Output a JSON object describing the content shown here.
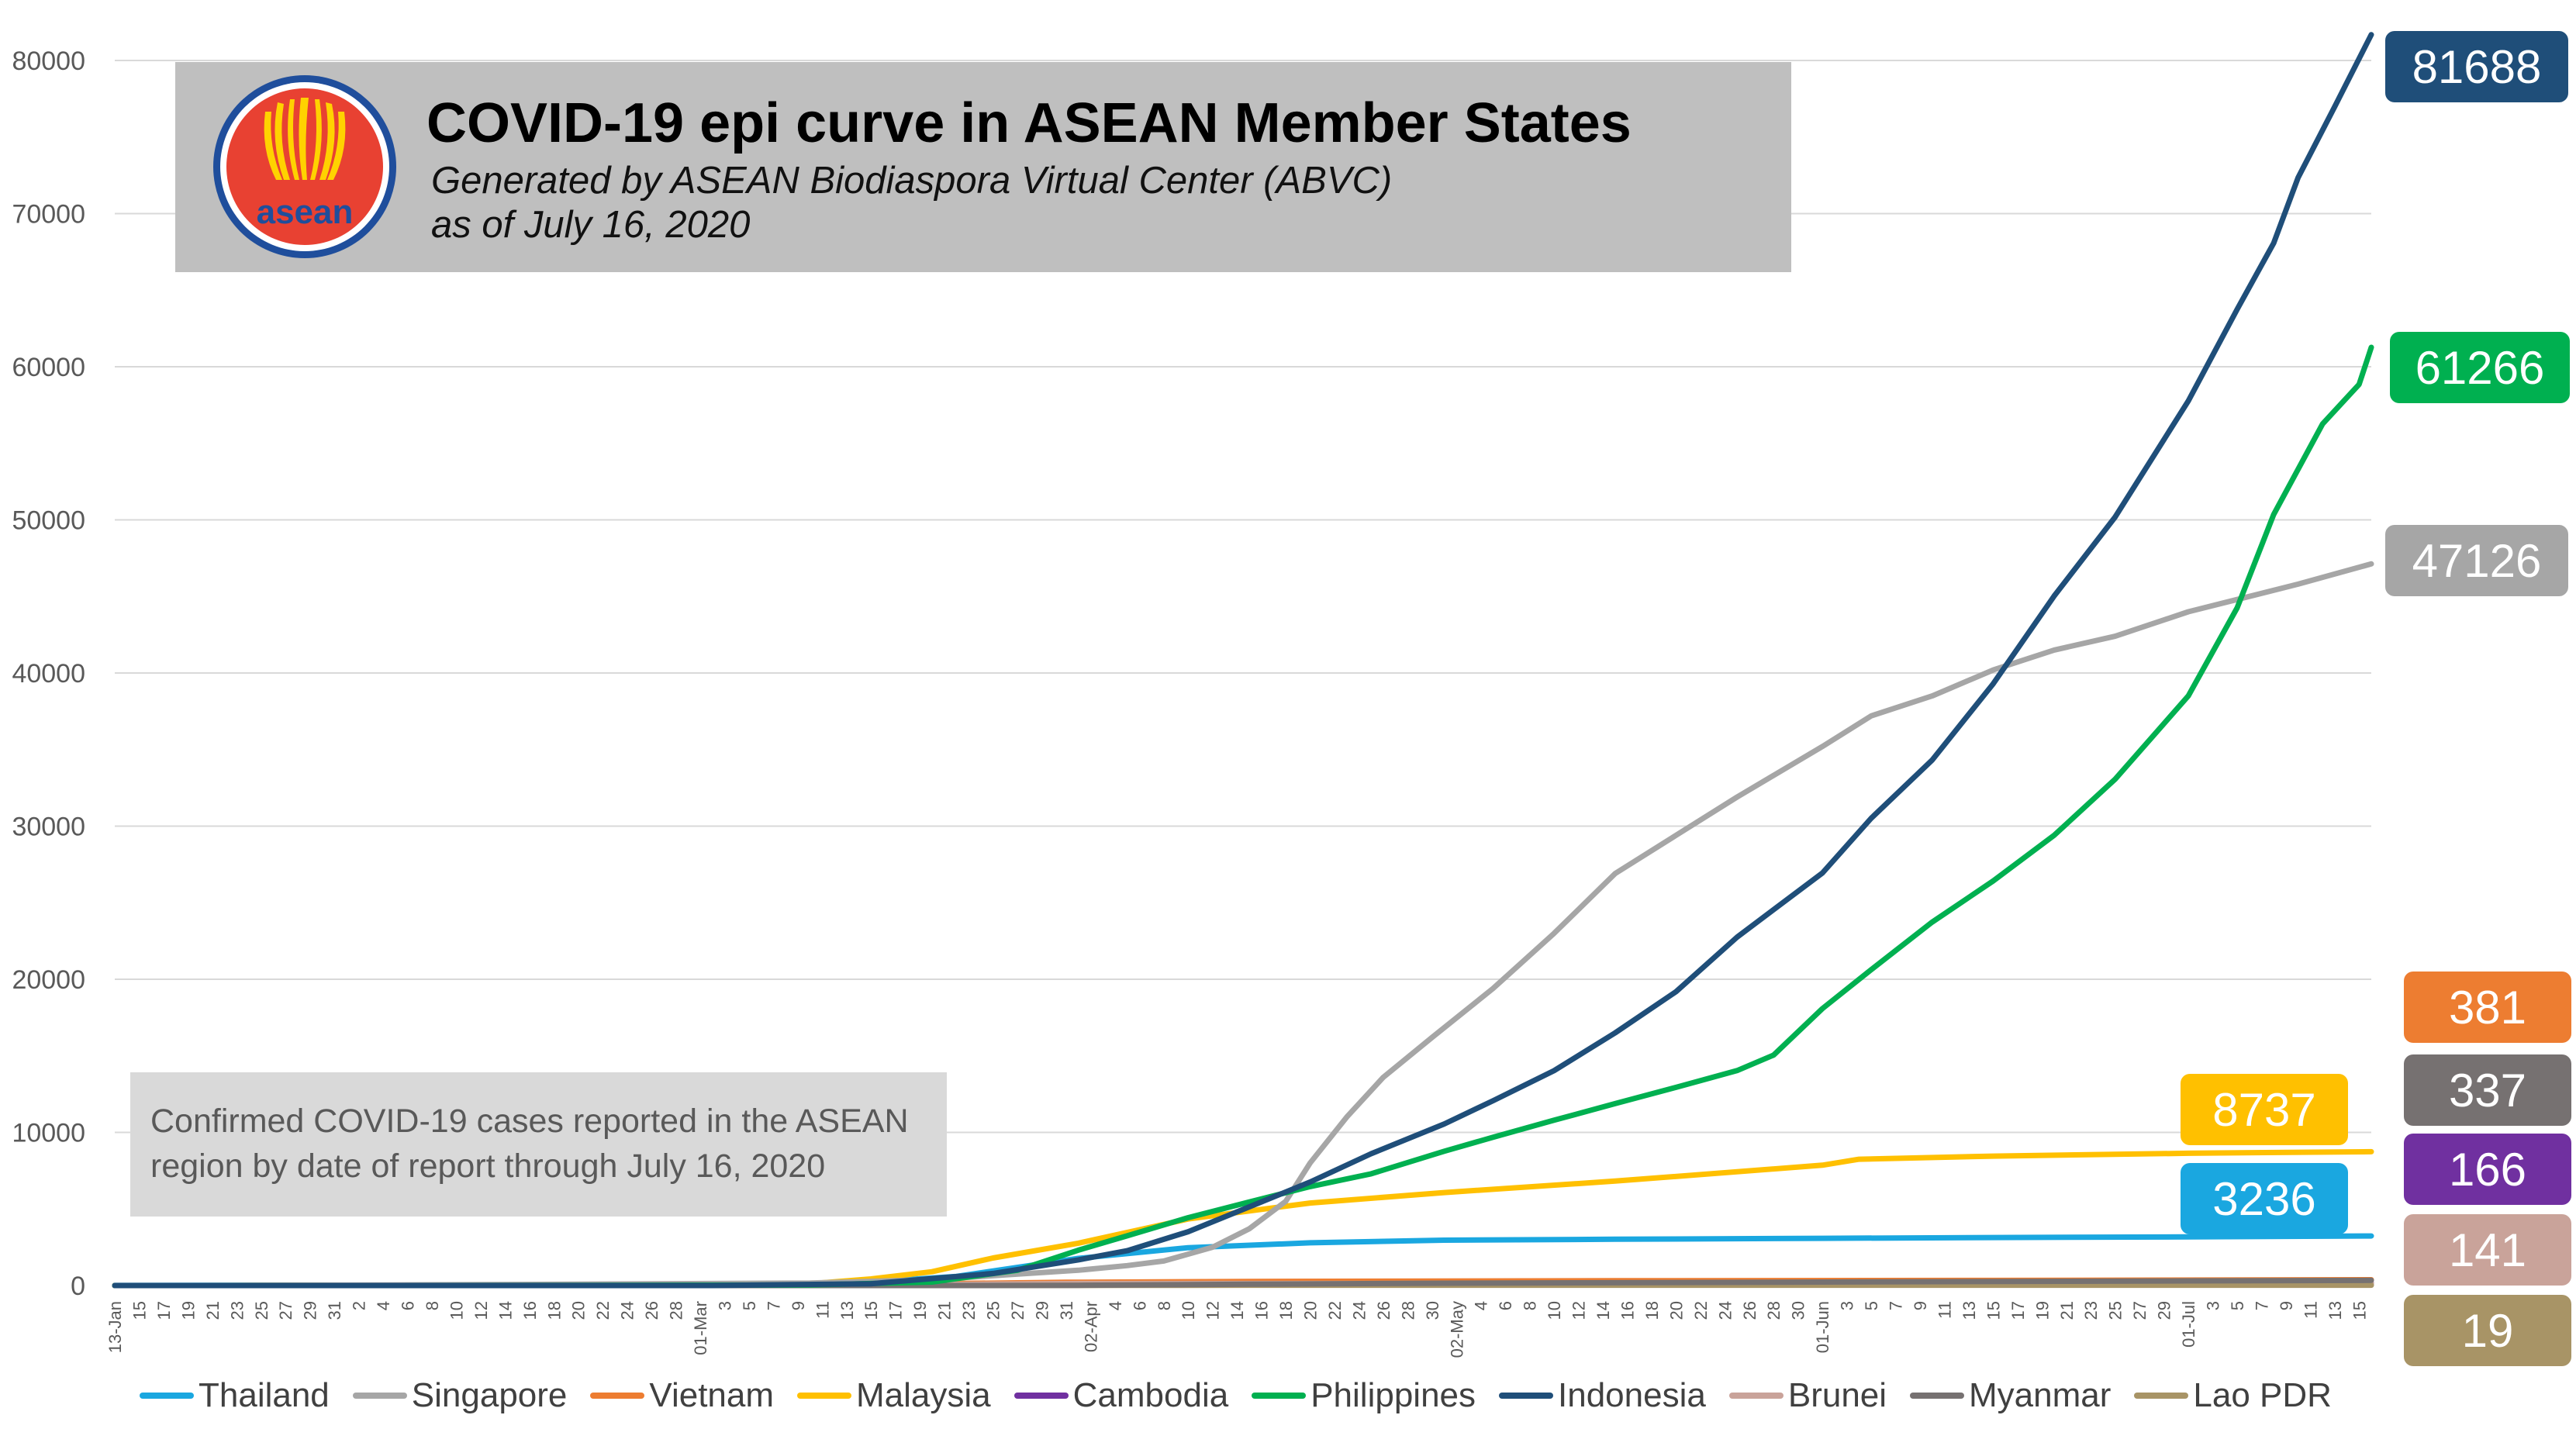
{
  "chart_data": {
    "type": "line",
    "title": "COVID-19 epi curve in ASEAN Member States",
    "subtitle": "Generated by ASEAN Biodiaspora Virtual Center (ABVC)",
    "subtitle2": "as of July 16, 2020",
    "note_lines": [
      "Confirmed COVID-19 cases reported in the ASEAN",
      "region by date of report  through July 16, 2020"
    ],
    "logo_text": "asean",
    "xlabel": "",
    "ylabel": "",
    "ylim": [
      0,
      80000
    ],
    "yticks": [
      "0",
      "10000",
      "20000",
      "30000",
      "40000",
      "50000",
      "60000",
      "70000",
      "80000"
    ],
    "x_tick_labels": [
      "13-Jan",
      "15",
      "17",
      "19",
      "21",
      "23",
      "25",
      "27",
      "29",
      "31",
      "2",
      "4",
      "6",
      "8",
      "10",
      "12",
      "14",
      "16",
      "18",
      "20",
      "22",
      "24",
      "26",
      "28",
      "01-Mar",
      "3",
      "5",
      "7",
      "9",
      "11",
      "13",
      "15",
      "17",
      "19",
      "21",
      "23",
      "25",
      "27",
      "29",
      "31",
      "02-Apr",
      "4",
      "6",
      "8",
      "10",
      "12",
      "14",
      "16",
      "18",
      "20",
      "22",
      "24",
      "26",
      "28",
      "30",
      "02-May",
      "4",
      "6",
      "8",
      "10",
      "12",
      "14",
      "16",
      "18",
      "20",
      "22",
      "24",
      "26",
      "28",
      "30",
      "01-Jun",
      "3",
      "5",
      "7",
      "9",
      "11",
      "13",
      "15",
      "17",
      "19",
      "21",
      "23",
      "25",
      "27",
      "29",
      "01-Jul",
      "3",
      "5",
      "7",
      "9",
      "11",
      "13",
      "15"
    ],
    "x_start": "2020-01-13",
    "x_end": "2020-07-16",
    "grid": true,
    "legend_position": "bottom",
    "series": [
      {
        "name": "Thailand",
        "color": "#1aa7e0",
        "final": 3236,
        "points": [
          [
            "2020-01-13",
            4
          ],
          [
            "2020-02-15",
            34
          ],
          [
            "2020-03-12",
            70
          ],
          [
            "2020-03-22",
            599
          ],
          [
            "2020-04-01",
            1771
          ],
          [
            "2020-04-10",
            2473
          ],
          [
            "2020-04-20",
            2792
          ],
          [
            "2020-05-01",
            2960
          ],
          [
            "2020-05-15",
            3025
          ],
          [
            "2020-06-01",
            3082
          ],
          [
            "2020-06-15",
            3135
          ],
          [
            "2020-07-01",
            3173
          ],
          [
            "2020-07-16",
            3236
          ]
        ]
      },
      {
        "name": "Singapore",
        "color": "#a6a6a6",
        "final": 47126,
        "points": [
          [
            "2020-01-23",
            1
          ],
          [
            "2020-02-15",
            72
          ],
          [
            "2020-03-10",
            166
          ],
          [
            "2020-03-20",
            385
          ],
          [
            "2020-04-01",
            1000
          ],
          [
            "2020-04-05",
            1300
          ],
          [
            "2020-04-08",
            1600
          ],
          [
            "2020-04-12",
            2500
          ],
          [
            "2020-04-15",
            3700
          ],
          [
            "2020-04-18",
            5500
          ],
          [
            "2020-04-20",
            8000
          ],
          [
            "2020-04-23",
            11000
          ],
          [
            "2020-04-26",
            13600
          ],
          [
            "2020-04-30",
            16200
          ],
          [
            "2020-05-05",
            19400
          ],
          [
            "2020-05-10",
            23000
          ],
          [
            "2020-05-15",
            26900
          ],
          [
            "2020-05-20",
            29400
          ],
          [
            "2020-05-25",
            31900
          ],
          [
            "2020-06-01",
            35200
          ],
          [
            "2020-06-05",
            37200
          ],
          [
            "2020-06-10",
            38500
          ],
          [
            "2020-06-15",
            40200
          ],
          [
            "2020-06-20",
            41500
          ],
          [
            "2020-06-25",
            42400
          ],
          [
            "2020-07-01",
            44000
          ],
          [
            "2020-07-05",
            44800
          ],
          [
            "2020-07-10",
            45800
          ],
          [
            "2020-07-16",
            47126
          ]
        ]
      },
      {
        "name": "Vietnam",
        "color": "#ed7d31",
        "final": 381,
        "points": [
          [
            "2020-01-23",
            2
          ],
          [
            "2020-02-15",
            16
          ],
          [
            "2020-03-10",
            31
          ],
          [
            "2020-03-31",
            212
          ],
          [
            "2020-04-15",
            268
          ],
          [
            "2020-05-15",
            314
          ],
          [
            "2020-06-15",
            334
          ],
          [
            "2020-07-16",
            381
          ]
        ]
      },
      {
        "name": "Malaysia",
        "color": "#ffc000",
        "final": 8737,
        "points": [
          [
            "2020-01-25",
            3
          ],
          [
            "2020-02-15",
            22
          ],
          [
            "2020-03-10",
            117
          ],
          [
            "2020-03-15",
            428
          ],
          [
            "2020-03-20",
            900
          ],
          [
            "2020-03-25",
            1800
          ],
          [
            "2020-04-01",
            2766
          ],
          [
            "2020-04-10",
            4346
          ],
          [
            "2020-04-20",
            5389
          ],
          [
            "2020-05-01",
            6071
          ],
          [
            "2020-05-15",
            6819
          ],
          [
            "2020-06-01",
            7857
          ],
          [
            "2020-06-04",
            8247
          ],
          [
            "2020-06-15",
            8453
          ],
          [
            "2020-07-01",
            8640
          ],
          [
            "2020-07-16",
            8737
          ]
        ]
      },
      {
        "name": "Cambodia",
        "color": "#7030a0",
        "final": 166,
        "points": [
          [
            "2020-01-27",
            1
          ],
          [
            "2020-02-15",
            1
          ],
          [
            "2020-03-15",
            12
          ],
          [
            "2020-03-31",
            109
          ],
          [
            "2020-04-30",
            122
          ],
          [
            "2020-06-15",
            128
          ],
          [
            "2020-07-16",
            166
          ]
        ]
      },
      {
        "name": "Philippines",
        "color": "#00b050",
        "final": 61266,
        "points": [
          [
            "2020-01-30",
            1
          ],
          [
            "2020-02-15",
            3
          ],
          [
            "2020-03-10",
            33
          ],
          [
            "2020-03-20",
            230
          ],
          [
            "2020-03-27",
            1000
          ],
          [
            "2020-04-01",
            2311
          ],
          [
            "2020-04-05",
            3246
          ],
          [
            "2020-04-10",
            4428
          ],
          [
            "2020-04-15",
            5453
          ],
          [
            "2020-04-20",
            6459
          ],
          [
            "2020-04-25",
            7294
          ],
          [
            "2020-05-01",
            8772
          ],
          [
            "2020-05-05",
            9684
          ],
          [
            "2020-05-10",
            10794
          ],
          [
            "2020-05-15",
            11876
          ],
          [
            "2020-05-20",
            12942
          ],
          [
            "2020-05-25",
            14035
          ],
          [
            "2020-05-28",
            15049
          ],
          [
            "2020-06-01",
            18086
          ],
          [
            "2020-06-05",
            20626
          ],
          [
            "2020-06-10",
            23732
          ],
          [
            "2020-06-15",
            26420
          ],
          [
            "2020-06-20",
            29400
          ],
          [
            "2020-06-25",
            33069
          ],
          [
            "2020-07-01",
            38511
          ],
          [
            "2020-07-05",
            44254
          ],
          [
            "2020-07-08",
            50359
          ],
          [
            "2020-07-12",
            56259
          ],
          [
            "2020-07-15",
            58850
          ],
          [
            "2020-07-16",
            61266
          ]
        ]
      },
      {
        "name": "Indonesia",
        "color": "#1f4e79",
        "final": 81688,
        "points": [
          [
            "2020-03-02",
            2
          ],
          [
            "2020-03-15",
            117
          ],
          [
            "2020-03-25",
            790
          ],
          [
            "2020-04-01",
            1677
          ],
          [
            "2020-04-05",
            2273
          ],
          [
            "2020-04-10",
            3512
          ],
          [
            "2020-04-15",
            5136
          ],
          [
            "2020-04-20",
            6760
          ],
          [
            "2020-04-25",
            8607
          ],
          [
            "2020-05-01",
            10551
          ],
          [
            "2020-05-05",
            12071
          ],
          [
            "2020-05-10",
            14032
          ],
          [
            "2020-05-15",
            16496
          ],
          [
            "2020-05-20",
            19189
          ],
          [
            "2020-05-25",
            22750
          ],
          [
            "2020-06-01",
            26940
          ],
          [
            "2020-06-05",
            30514
          ],
          [
            "2020-06-10",
            34316
          ],
          [
            "2020-06-15",
            39294
          ],
          [
            "2020-06-20",
            45029
          ],
          [
            "2020-06-25",
            50187
          ],
          [
            "2020-07-01",
            57770
          ],
          [
            "2020-07-05",
            63749
          ],
          [
            "2020-07-08",
            68079
          ],
          [
            "2020-07-10",
            72347
          ],
          [
            "2020-07-13",
            76981
          ],
          [
            "2020-07-16",
            81688
          ]
        ]
      },
      {
        "name": "Brunei",
        "color": "#c9a39a",
        "final": 141,
        "points": [
          [
            "2020-03-09",
            1
          ],
          [
            "2020-03-20",
            73
          ],
          [
            "2020-04-01",
            131
          ],
          [
            "2020-04-30",
            138
          ],
          [
            "2020-07-16",
            141
          ]
        ]
      },
      {
        "name": "Myanmar",
        "color": "#767171",
        "final": 337,
        "points": [
          [
            "2020-03-23",
            2
          ],
          [
            "2020-04-01",
            15
          ],
          [
            "2020-04-15",
            85
          ],
          [
            "2020-05-01",
            151
          ],
          [
            "2020-06-01",
            228
          ],
          [
            "2020-07-01",
            303
          ],
          [
            "2020-07-16",
            337
          ]
        ]
      },
      {
        "name": "Lao PDR",
        "color": "#a89466",
        "final": 19,
        "points": [
          [
            "2020-03-24",
            2
          ],
          [
            "2020-04-05",
            11
          ],
          [
            "2020-04-15",
            19
          ],
          [
            "2020-07-16",
            19
          ]
        ]
      }
    ],
    "end_labels": [
      {
        "series": "Indonesia",
        "text": "81688"
      },
      {
        "series": "Philippines",
        "text": "61266"
      },
      {
        "series": "Singapore",
        "text": "47126"
      },
      {
        "series": "Vietnam",
        "text": "381"
      },
      {
        "series": "Myanmar",
        "text": "337"
      },
      {
        "series": "Cambodia",
        "text": "166"
      },
      {
        "series": "Brunei",
        "text": "141"
      },
      {
        "series": "Lao PDR",
        "text": "19"
      },
      {
        "series": "Malaysia",
        "text": "8737"
      },
      {
        "series": "Thailand",
        "text": "3236"
      }
    ]
  }
}
